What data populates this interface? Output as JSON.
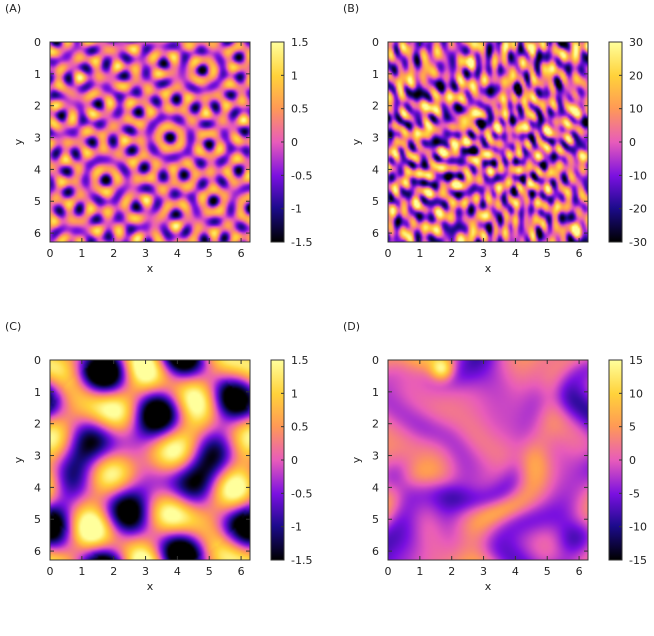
{
  "chart_data": [
    {
      "type": "heatmap",
      "panel_label": "(A)",
      "xlabel": "x",
      "ylabel": "y",
      "xlim": [
        0,
        6.28
      ],
      "ylim": [
        0,
        6.28
      ],
      "y_axis_direction": "down",
      "xticks": [
        "0",
        "1",
        "2",
        "3",
        "4",
        "5",
        "6"
      ],
      "yticks": [
        "0",
        "1",
        "2",
        "3",
        "4",
        "5",
        "6"
      ],
      "colorbar_range": [
        -1.5,
        1.5
      ],
      "colorbar_ticks": [
        "1.5",
        "1",
        "0.5",
        "0",
        "-0.5",
        "-1",
        "-1.5"
      ],
      "colormap": [
        "#000000",
        "#1c0b8c",
        "#7a10e0",
        "#e85cba",
        "#ff9a55",
        "#ffd23a",
        "#ffff9c"
      ],
      "pattern": "fine labyrinth of small spots"
    },
    {
      "type": "heatmap",
      "panel_label": "(B)",
      "xlabel": "x",
      "ylabel": "y",
      "xlim": [
        0,
        6.28
      ],
      "ylim": [
        0,
        6.28
      ],
      "y_axis_direction": "down",
      "xticks": [
        "0",
        "1",
        "2",
        "3",
        "4",
        "5",
        "6"
      ],
      "yticks": [
        "0",
        "1",
        "2",
        "3",
        "4",
        "5",
        "6"
      ],
      "colorbar_range": [
        -30,
        30
      ],
      "colorbar_ticks": [
        "30",
        "20",
        "10",
        "0",
        "-10",
        "-20",
        "-30"
      ],
      "colormap": [
        "#000000",
        "#1c0b8c",
        "#7a10e0",
        "#e85cba",
        "#ff9a55",
        "#ffd23a",
        "#ffff9c"
      ],
      "pattern": "fine turbulent streaks"
    },
    {
      "type": "heatmap",
      "panel_label": "(C)",
      "xlabel": "x",
      "ylabel": "y",
      "xlim": [
        0,
        6.28
      ],
      "ylim": [
        0,
        6.28
      ],
      "y_axis_direction": "down",
      "xticks": [
        "0",
        "1",
        "2",
        "3",
        "4",
        "5",
        "6"
      ],
      "yticks": [
        "0",
        "1",
        "2",
        "3",
        "4",
        "5",
        "6"
      ],
      "colorbar_range": [
        -1.5,
        1.5
      ],
      "colorbar_ticks": [
        "1.5",
        "1",
        "0.5",
        "0",
        "-0.5",
        "-1",
        "-1.5"
      ],
      "colormap": [
        "#000000",
        "#1c0b8c",
        "#7a10e0",
        "#e85cba",
        "#ff9a55",
        "#ffd23a",
        "#ffff9c"
      ],
      "pattern": "large smooth blobs"
    },
    {
      "type": "heatmap",
      "panel_label": "(D)",
      "xlabel": "x",
      "ylabel": "y",
      "xlim": [
        0,
        6.28
      ],
      "ylim": [
        0,
        6.28
      ],
      "y_axis_direction": "down",
      "xticks": [
        "0",
        "1",
        "2",
        "3",
        "4",
        "5",
        "6"
      ],
      "yticks": [
        "0",
        "1",
        "2",
        "3",
        "4",
        "5",
        "6"
      ],
      "colorbar_range": [
        -15,
        15
      ],
      "colorbar_ticks": [
        "15",
        "10",
        "5",
        "0",
        "-5",
        "-10",
        "-15"
      ],
      "colormap": [
        "#000000",
        "#1c0b8c",
        "#7a10e0",
        "#e85cba",
        "#ff9a55",
        "#ffd23a",
        "#ffff9c"
      ],
      "pattern": "large-scale swirling filaments"
    }
  ]
}
